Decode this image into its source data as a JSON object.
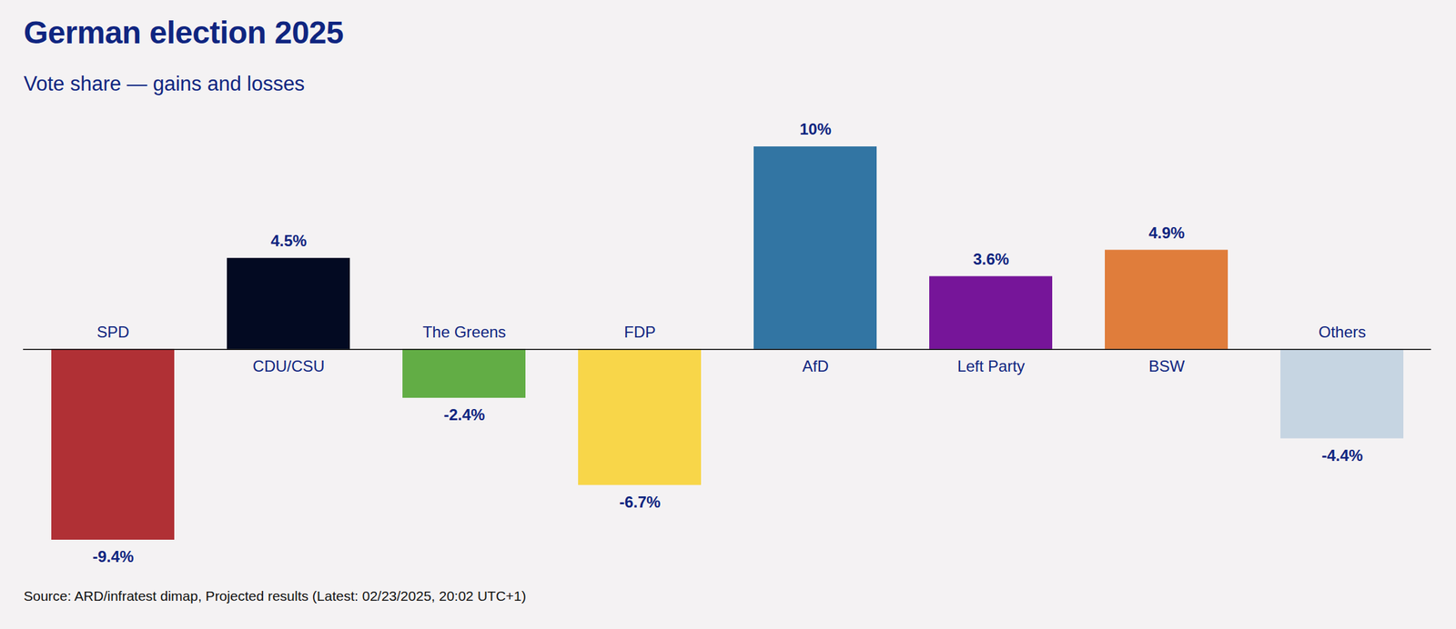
{
  "chart_data": {
    "type": "bar",
    "title": "German election 2025",
    "subtitle": "Vote share — gains and losses",
    "categories": [
      "SPD",
      "CDU/CSU",
      "The Greens",
      "FDP",
      "AfD",
      "Left Party",
      "BSW",
      "Others"
    ],
    "values": [
      -9.4,
      4.5,
      -2.4,
      -6.7,
      10,
      3.6,
      4.9,
      -4.4
    ],
    "value_labels": [
      "-9.4%",
      "4.5%",
      "-2.4%",
      "-6.7%",
      "10%",
      "3.6%",
      "4.9%",
      "-4.4%"
    ],
    "colors": [
      "#b03035",
      "#030a22",
      "#62ad45",
      "#f8d649",
      "#3275a3",
      "#761599",
      "#e07d3b",
      "#c6d5e2"
    ],
    "ylim": [
      -9.4,
      10
    ],
    "yticks": [
      0
    ],
    "tick_labels": false,
    "data_labels": true,
    "grid": false,
    "source": "Source: ARD/infratest dimap, Projected results (Latest: 02/23/2025, 20:02 UTC+1)"
  }
}
